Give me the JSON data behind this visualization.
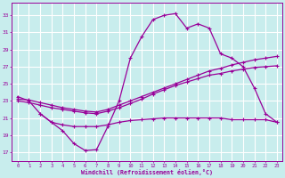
{
  "bg_color": "#c8eded",
  "grid_color": "#ffffff",
  "line_color": "#990099",
  "xlabel": "Windchill (Refroidissement éolien,°C)",
  "x_ticks": [
    0,
    1,
    2,
    3,
    4,
    5,
    6,
    7,
    8,
    9,
    10,
    11,
    12,
    13,
    14,
    15,
    16,
    17,
    18,
    19,
    20,
    21,
    22,
    23
  ],
  "y_ticks": [
    17,
    19,
    21,
    23,
    25,
    27,
    29,
    31,
    33
  ],
  "ylim": [
    16.0,
    34.5
  ],
  "xlim": [
    -0.5,
    23.5
  ],
  "series": [
    {
      "x": [
        0,
        1,
        2,
        3,
        4,
        5,
        6,
        7,
        8,
        9,
        10,
        11,
        12,
        13,
        14,
        15,
        16,
        17,
        18,
        19,
        20,
        21,
        22,
        23
      ],
      "y": [
        23.5,
        23.0,
        21.5,
        20.5,
        19.5,
        18.0,
        17.2,
        17.3,
        20.0,
        23.0,
        28.0,
        30.5,
        32.5,
        33.0,
        33.2,
        31.5,
        32.0,
        31.5,
        28.5,
        28.0,
        27.0,
        24.5,
        21.5,
        20.5
      ]
    },
    {
      "x": [
        0,
        1,
        2,
        3,
        4,
        5,
        6,
        7,
        8,
        9,
        10,
        11,
        12,
        13,
        14,
        15,
        16,
        17,
        18,
        19,
        20,
        21,
        22,
        23
      ],
      "y": [
        23.2,
        23.1,
        22.8,
        22.5,
        22.2,
        22.0,
        21.8,
        21.7,
        22.0,
        22.5,
        23.0,
        23.5,
        24.0,
        24.5,
        25.0,
        25.5,
        26.0,
        26.5,
        26.8,
        27.2,
        27.5,
        27.8,
        28.0,
        28.2
      ]
    },
    {
      "x": [
        0,
        1,
        2,
        3,
        4,
        5,
        6,
        7,
        8,
        9,
        10,
        11,
        12,
        13,
        14,
        15,
        16,
        17,
        18,
        19,
        20,
        21,
        22,
        23
      ],
      "y": [
        23.0,
        22.8,
        22.5,
        22.2,
        22.0,
        21.8,
        21.6,
        21.5,
        21.8,
        22.2,
        22.7,
        23.2,
        23.8,
        24.3,
        24.8,
        25.2,
        25.6,
        26.0,
        26.2,
        26.5,
        26.7,
        26.9,
        27.0,
        27.1
      ]
    },
    {
      "x": [
        2,
        3,
        4,
        5,
        6,
        7,
        8,
        9,
        10,
        11,
        12,
        13,
        14,
        15,
        16,
        17,
        18,
        19,
        20,
        21,
        22,
        23
      ],
      "y": [
        21.5,
        20.5,
        20.2,
        20.0,
        20.0,
        20.0,
        20.2,
        20.5,
        20.7,
        20.8,
        20.9,
        21.0,
        21.0,
        21.0,
        21.0,
        21.0,
        21.0,
        20.8,
        20.8,
        20.8,
        20.8,
        20.5
      ]
    }
  ]
}
